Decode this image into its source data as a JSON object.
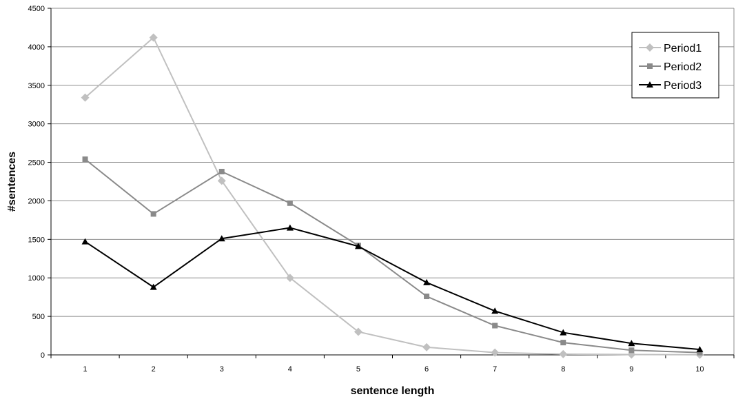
{
  "chart_data": {
    "type": "line",
    "x": [
      1,
      2,
      3,
      4,
      5,
      6,
      7,
      8,
      9,
      10
    ],
    "xlabel": "sentence length",
    "ylabel": "#sentences",
    "ylim": [
      0,
      4500
    ],
    "yticks": [
      0,
      500,
      1000,
      1500,
      2000,
      2500,
      3000,
      3500,
      4000,
      4500
    ],
    "grid": true,
    "legend_position": "top-right",
    "series": [
      {
        "name": "Period1",
        "marker": "diamond",
        "color": "#c0c0c0",
        "values": [
          3340,
          4120,
          2260,
          1000,
          300,
          100,
          30,
          10,
          5,
          2
        ]
      },
      {
        "name": "Period2",
        "marker": "square",
        "color": "#8a8a8a",
        "values": [
          2540,
          1830,
          2380,
          1970,
          1420,
          760,
          380,
          160,
          60,
          30
        ]
      },
      {
        "name": "Period3",
        "marker": "triangle",
        "color": "#000000",
        "values": [
          1470,
          880,
          1510,
          1650,
          1410,
          940,
          570,
          290,
          150,
          70
        ]
      }
    ]
  }
}
